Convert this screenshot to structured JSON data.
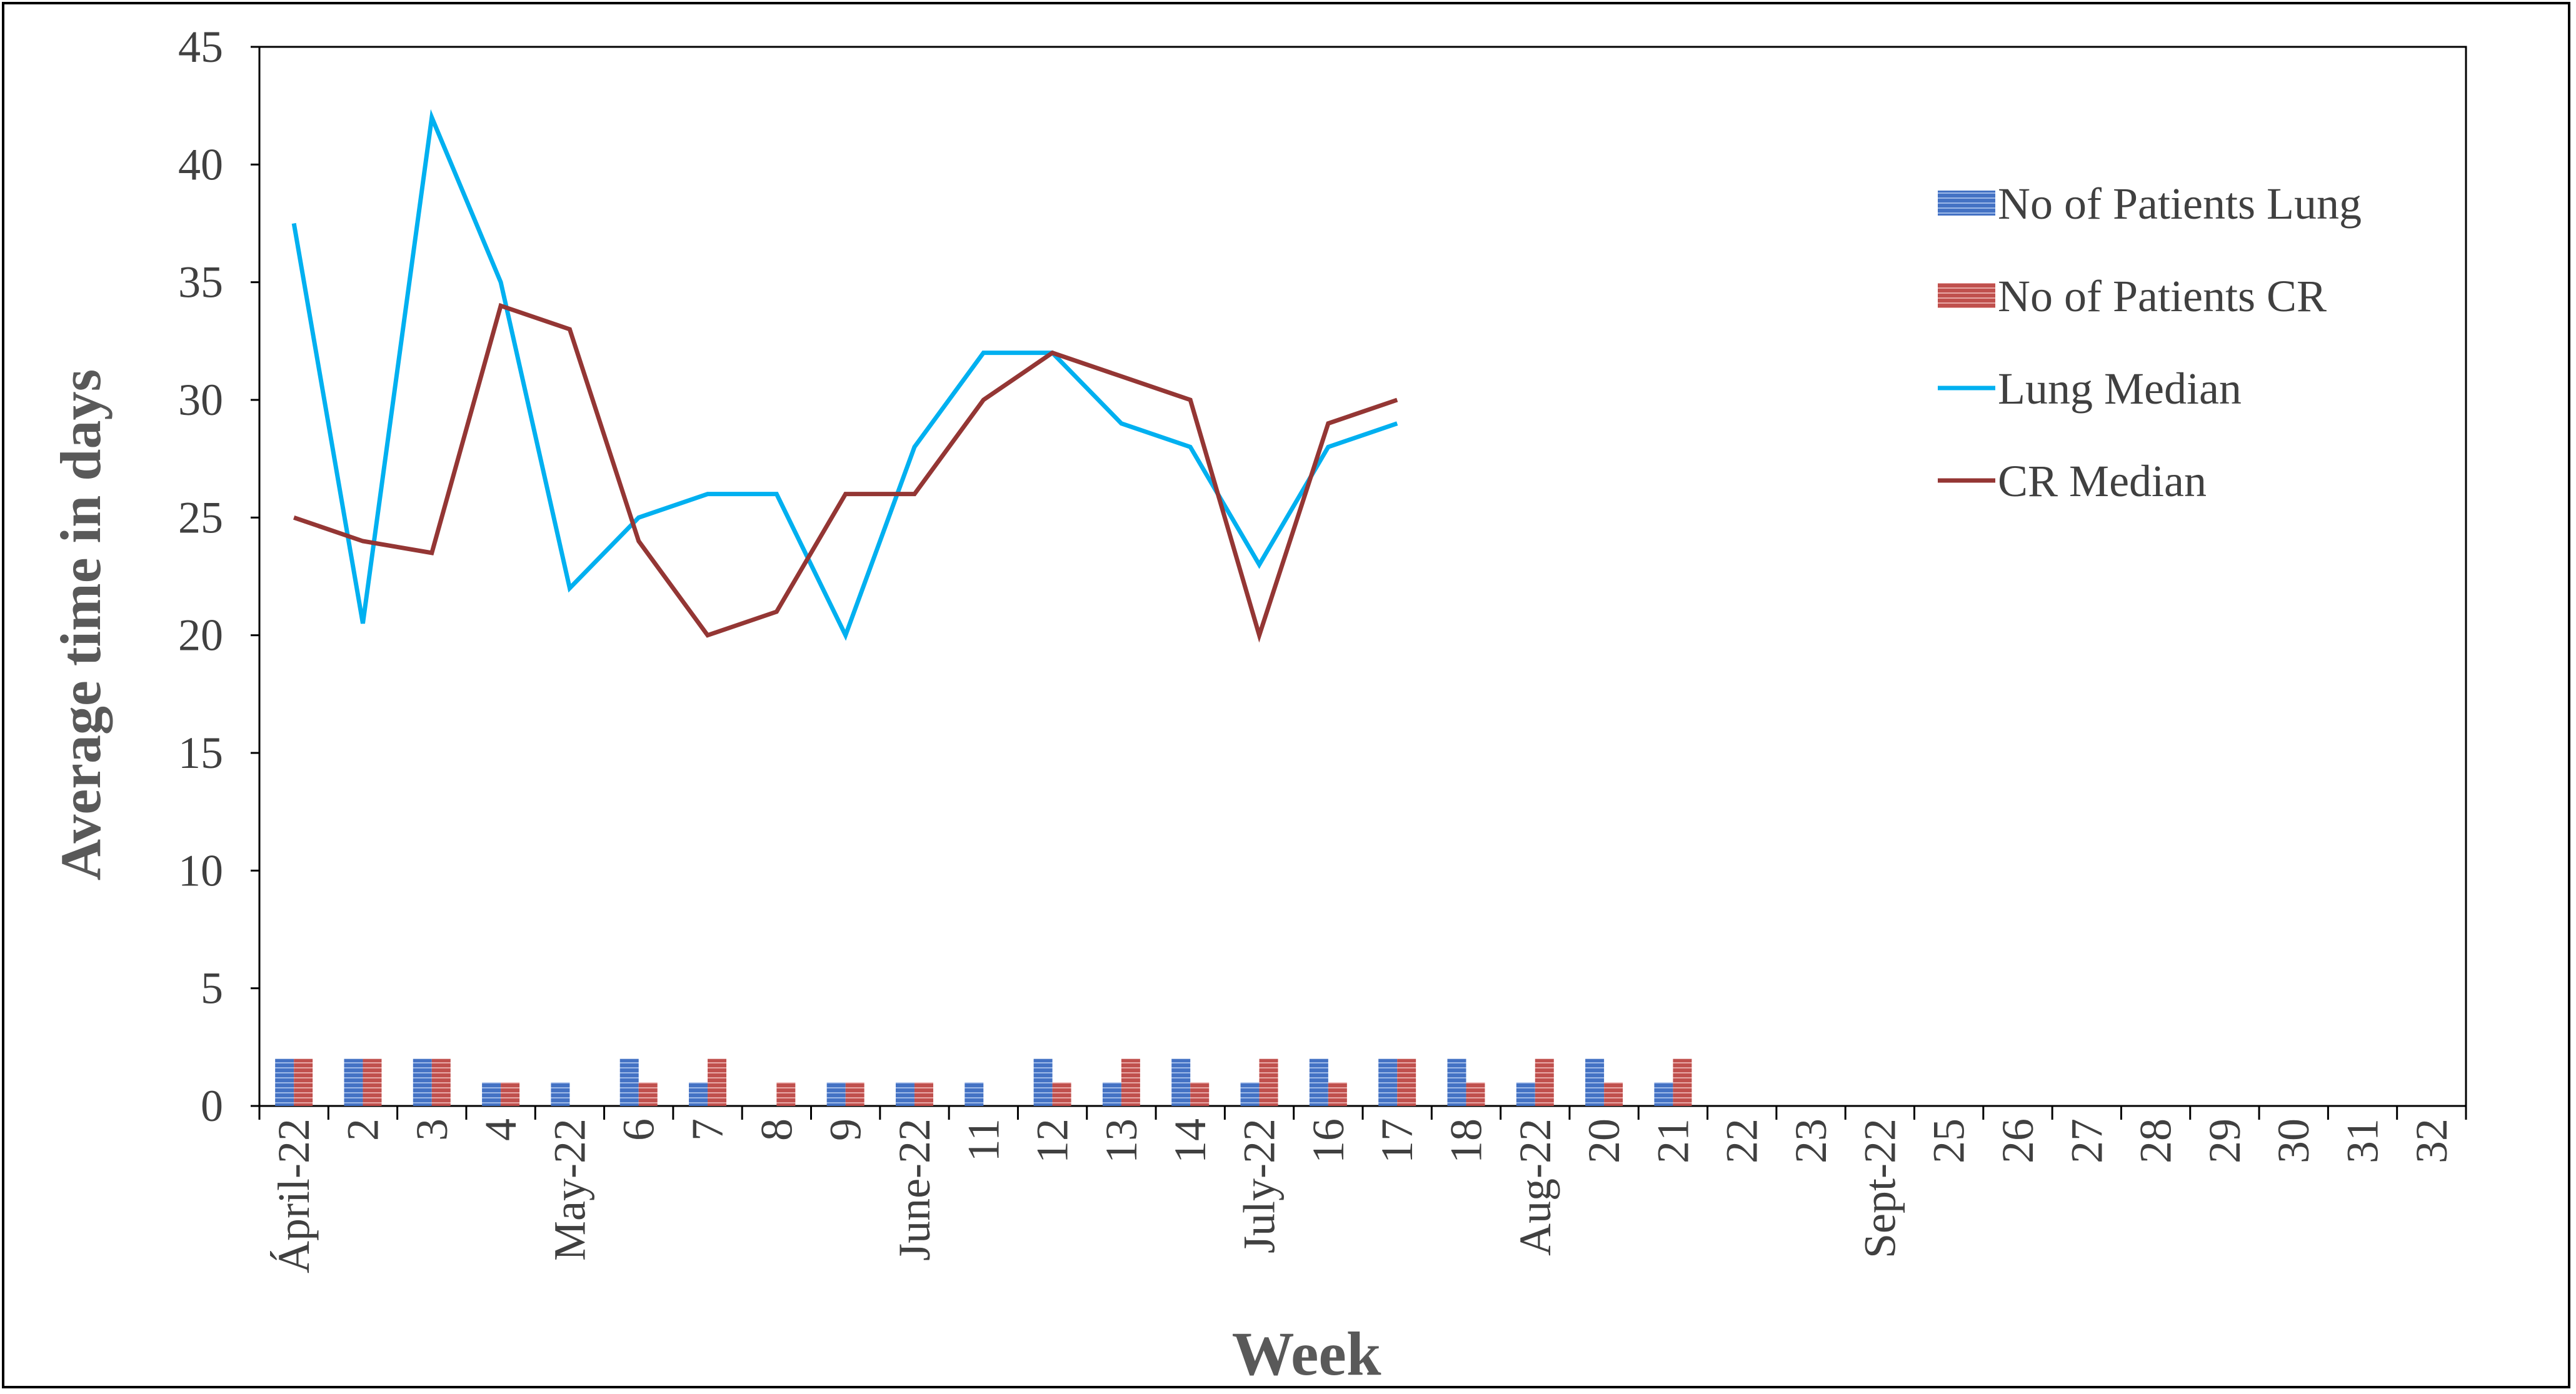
{
  "chart_data": {
    "type": "bar",
    "xlabel": "Week",
    "ylabel": "Average time in days",
    "ylim": [
      0,
      45
    ],
    "yticks": [
      "0",
      "5",
      "10",
      "15",
      "20",
      "25",
      "30",
      "35",
      "40",
      "45"
    ],
    "categories": [
      "Ápril-22",
      "2",
      "3",
      "4",
      "May-22",
      "6",
      "7",
      "8",
      "9",
      "June-22",
      "11",
      "12",
      "13",
      "14",
      "July-22",
      "16",
      "17",
      "18",
      "Aug-22",
      "20",
      "21",
      "22",
      "23",
      "Sept-22",
      "25",
      "26",
      "27",
      "28",
      "29",
      "30",
      "31",
      "32"
    ],
    "grid": false,
    "legend_position": "right",
    "series": [
      {
        "name": "No of Patients Lung",
        "kind": "bar",
        "color": "#4472C4",
        "values": [
          2,
          2,
          2,
          1,
          1,
          2,
          1,
          0,
          1,
          1,
          1,
          2,
          1,
          2,
          1,
          2,
          2,
          2,
          1,
          2,
          1,
          null,
          null,
          null,
          null,
          null,
          null,
          null,
          null,
          null,
          null,
          null
        ]
      },
      {
        "name": "No of Patients CR",
        "kind": "bar",
        "color": "#C0504D",
        "values": [
          2,
          2,
          2,
          1,
          0,
          1,
          2,
          1,
          1,
          1,
          0,
          1,
          2,
          1,
          2,
          1,
          2,
          1,
          2,
          1,
          2,
          null,
          null,
          null,
          null,
          null,
          null,
          null,
          null,
          null,
          null,
          null
        ]
      },
      {
        "name": "Lung Median",
        "kind": "line",
        "color": "#00B0F0",
        "values": [
          37.5,
          20.5,
          42,
          35,
          22,
          25,
          26,
          26,
          20,
          28,
          32,
          32,
          29,
          28,
          23,
          28,
          29,
          null,
          null,
          null,
          null,
          null,
          null,
          null,
          null,
          null,
          null,
          null,
          null,
          null,
          null,
          null
        ]
      },
      {
        "name": "CR Median",
        "kind": "line",
        "color": "#943634",
        "values": [
          25,
          24,
          23.5,
          34,
          33,
          24,
          20,
          21,
          26,
          26,
          30,
          32,
          31,
          30,
          20,
          29,
          30,
          null,
          null,
          null,
          null,
          null,
          null,
          null,
          null,
          null,
          null,
          null,
          null,
          null,
          null,
          null
        ]
      }
    ]
  }
}
